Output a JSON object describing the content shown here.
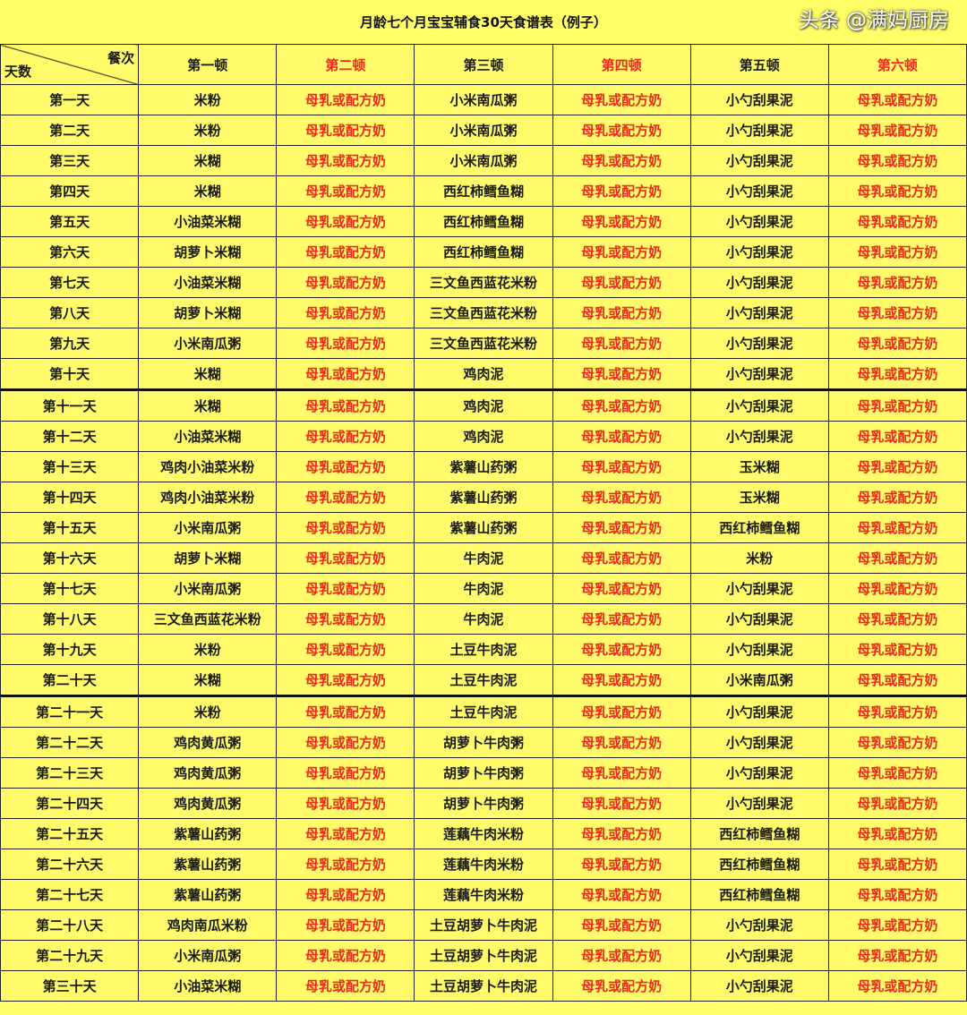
{
  "title": "月龄七个月宝宝辅食30天食谱表（例子）",
  "corner": {
    "top_right": "餐次",
    "bottom_left": "天数"
  },
  "headers": [
    "第一顿",
    "第二顿",
    "第三顿",
    "第四顿",
    "第五顿",
    "第六顿"
  ],
  "colors": {
    "background": "#fffb6a",
    "red_text": "#f0281e",
    "black_text": "#1a1a1a"
  },
  "rows": [
    [
      "第一天",
      "米粉",
      "母乳或配方奶",
      "小米南瓜粥",
      "母乳或配方奶",
      "小勺刮果泥",
      "母乳或配方奶"
    ],
    [
      "第二天",
      "米粉",
      "母乳或配方奶",
      "小米南瓜粥",
      "母乳或配方奶",
      "小勺刮果泥",
      "母乳或配方奶"
    ],
    [
      "第三天",
      "米糊",
      "母乳或配方奶",
      "小米南瓜粥",
      "母乳或配方奶",
      "小勺刮果泥",
      "母乳或配方奶"
    ],
    [
      "第四天",
      "米糊",
      "母乳或配方奶",
      "西红柿鳕鱼糊",
      "母乳或配方奶",
      "小勺刮果泥",
      "母乳或配方奶"
    ],
    [
      "第五天",
      "小油菜米糊",
      "母乳或配方奶",
      "西红柿鳕鱼糊",
      "母乳或配方奶",
      "小勺刮果泥",
      "母乳或配方奶"
    ],
    [
      "第六天",
      "胡萝卜米糊",
      "母乳或配方奶",
      "西红柿鳕鱼糊",
      "母乳或配方奶",
      "小勺刮果泥",
      "母乳或配方奶"
    ],
    [
      "第七天",
      "小油菜米糊",
      "母乳或配方奶",
      "三文鱼西蓝花米粉",
      "母乳或配方奶",
      "小勺刮果泥",
      "母乳或配方奶"
    ],
    [
      "第八天",
      "胡萝卜米糊",
      "母乳或配方奶",
      "三文鱼西蓝花米粉",
      "母乳或配方奶",
      "小勺刮果泥",
      "母乳或配方奶"
    ],
    [
      "第九天",
      "小米南瓜粥",
      "母乳或配方奶",
      "三文鱼西蓝花米粉",
      "母乳或配方奶",
      "小勺刮果泥",
      "母乳或配方奶"
    ],
    [
      "第十天",
      "米糊",
      "母乳或配方奶",
      "鸡肉泥",
      "母乳或配方奶",
      "小勺刮果泥",
      "母乳或配方奶"
    ],
    [
      "第十一天",
      "米糊",
      "母乳或配方奶",
      "鸡肉泥",
      "母乳或配方奶",
      "小勺刮果泥",
      "母乳或配方奶"
    ],
    [
      "第十二天",
      "小油菜米糊",
      "母乳或配方奶",
      "鸡肉泥",
      "母乳或配方奶",
      "小勺刮果泥",
      "母乳或配方奶"
    ],
    [
      "第十三天",
      "鸡肉小油菜米粉",
      "母乳或配方奶",
      "紫薯山药粥",
      "母乳或配方奶",
      "玉米糊",
      "母乳或配方奶"
    ],
    [
      "第十四天",
      "鸡肉小油菜米粉",
      "母乳或配方奶",
      "紫薯山药粥",
      "母乳或配方奶",
      "玉米糊",
      "母乳或配方奶"
    ],
    [
      "第十五天",
      "小米南瓜粥",
      "母乳或配方奶",
      "紫薯山药粥",
      "母乳或配方奶",
      "西红柿鳕鱼糊",
      "母乳或配方奶"
    ],
    [
      "第十六天",
      "胡萝卜米糊",
      "母乳或配方奶",
      "牛肉泥",
      "母乳或配方奶",
      "米粉",
      "母乳或配方奶"
    ],
    [
      "第十七天",
      "小米南瓜粥",
      "母乳或配方奶",
      "牛肉泥",
      "母乳或配方奶",
      "小勺刮果泥",
      "母乳或配方奶"
    ],
    [
      "第十八天",
      "三文鱼西蓝花米粉",
      "母乳或配方奶",
      "牛肉泥",
      "母乳或配方奶",
      "小勺刮果泥",
      "母乳或配方奶"
    ],
    [
      "第十九天",
      "米粉",
      "母乳或配方奶",
      "土豆牛肉泥",
      "母乳或配方奶",
      "小勺刮果泥",
      "母乳或配方奶"
    ],
    [
      "第二十天",
      "米糊",
      "母乳或配方奶",
      "土豆牛肉泥",
      "母乳或配方奶",
      "小米南瓜粥",
      "母乳或配方奶"
    ],
    [
      "第二十一天",
      "米粉",
      "母乳或配方奶",
      "土豆牛肉泥",
      "母乳或配方奶",
      "小勺刮果泥",
      "母乳或配方奶"
    ],
    [
      "第二十二天",
      "鸡肉黄瓜粥",
      "母乳或配方奶",
      "胡萝卜牛肉粥",
      "母乳或配方奶",
      "小勺刮果泥",
      "母乳或配方奶"
    ],
    [
      "第二十三天",
      "鸡肉黄瓜粥",
      "母乳或配方奶",
      "胡萝卜牛肉粥",
      "母乳或配方奶",
      "小勺刮果泥",
      "母乳或配方奶"
    ],
    [
      "第二十四天",
      "鸡肉黄瓜粥",
      "母乳或配方奶",
      "胡萝卜牛肉粥",
      "母乳或配方奶",
      "小勺刮果泥",
      "母乳或配方奶"
    ],
    [
      "第二十五天",
      "紫薯山药粥",
      "母乳或配方奶",
      "莲藕牛肉米粉",
      "母乳或配方奶",
      "西红柿鳕鱼糊",
      "母乳或配方奶"
    ],
    [
      "第二十六天",
      "紫薯山药粥",
      "母乳或配方奶",
      "莲藕牛肉米粉",
      "母乳或配方奶",
      "西红柿鳕鱼糊",
      "母乳或配方奶"
    ],
    [
      "第二十七天",
      "紫薯山药粥",
      "母乳或配方奶",
      "莲藕牛肉米粉",
      "母乳或配方奶",
      "西红柿鳕鱼糊",
      "母乳或配方奶"
    ],
    [
      "第二十八天",
      "鸡肉南瓜米粉",
      "母乳或配方奶",
      "土豆胡萝卜牛肉泥",
      "母乳或配方奶",
      "小勺刮果泥",
      "母乳或配方奶"
    ],
    [
      "第二十九天",
      "小米南瓜粥",
      "母乳或配方奶",
      "土豆胡萝卜牛肉泥",
      "母乳或配方奶",
      "小勺刮果泥",
      "母乳或配方奶"
    ],
    [
      "第三十天",
      "小油菜米糊",
      "母乳或配方奶",
      "土豆胡萝卜牛肉泥",
      "母乳或配方奶",
      "小勺刮果泥",
      "母乳或配方奶"
    ]
  ],
  "watermark": "头条 @满妈厨房"
}
